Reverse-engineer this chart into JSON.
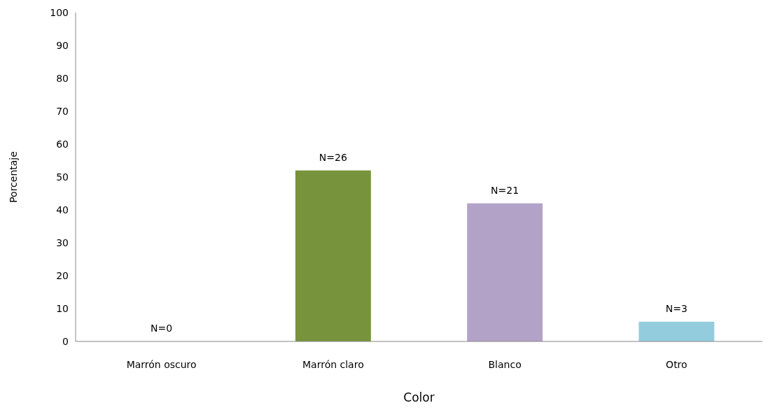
{
  "chart_data": {
    "type": "bar",
    "xlabel": "Color",
    "ylabel": "Porcentaje",
    "categories": [
      "Marrón oscuro",
      "Marrón claro",
      "Blanco",
      "Otro"
    ],
    "values": [
      0,
      52,
      42,
      6
    ],
    "colors": [
      "#8b5a2b",
      "#77933c",
      "#b3a2c7",
      "#93cddd"
    ],
    "annotations": [
      {
        "text": "N=0",
        "x": "Marrón oscuro",
        "y": 0
      },
      {
        "text": "N=26",
        "x": "Marrón claro",
        "y": 52
      },
      {
        "text": "N=21",
        "x": "Blanco",
        "y": 42
      },
      {
        "text": "N=3",
        "x": "Otro",
        "y": 6
      }
    ],
    "ylim": [
      0,
      100
    ],
    "yticks": [
      0,
      10,
      20,
      30,
      40,
      50,
      60,
      70,
      80,
      90,
      100
    ],
    "grid": false
  }
}
